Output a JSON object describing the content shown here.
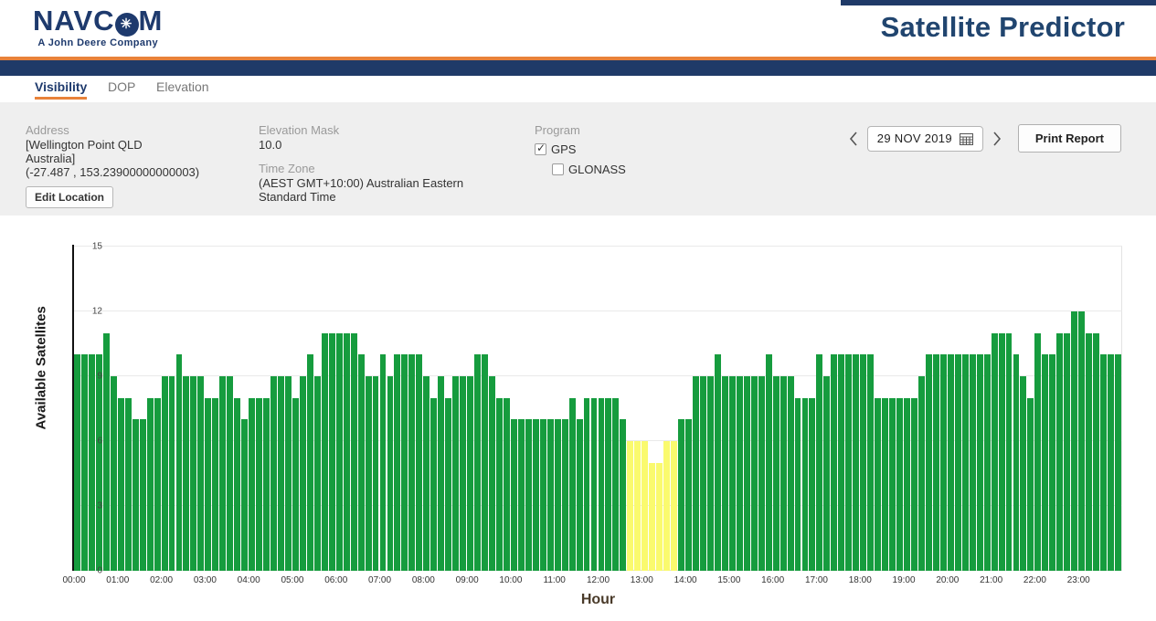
{
  "header": {
    "logo_text_left": "NAVC",
    "logo_text_right": "M",
    "logo_star": "✳",
    "logo_sub": "A John Deere Company",
    "title": "Satellite Predictor",
    "navy": "#1f3a68",
    "orange": "#e8823a"
  },
  "tabs": [
    {
      "label": "Visibility",
      "active": true
    },
    {
      "label": "DOP",
      "active": false
    },
    {
      "label": "Elevation",
      "active": false
    }
  ],
  "info": {
    "address_label": "Address",
    "address_line1": "[Wellington Point QLD",
    "address_line2": "Australia]",
    "address_line3": "(-27.487 , 153.23900000000003)",
    "edit_button": "Edit Location",
    "elevation_mask_label": "Elevation Mask",
    "elevation_mask_value": "10.0",
    "time_zone_label": "Time Zone",
    "time_zone_value": "(AEST GMT+10:00) Australian Eastern Standard Time",
    "program_label": "Program",
    "programs": [
      {
        "label": "GPS",
        "checked": true
      },
      {
        "label": "GLONASS",
        "checked": false
      }
    ],
    "check_glyph": "✓",
    "date_value": "29 NOV 2019",
    "print_button": "Print Report"
  },
  "chart_data": {
    "type": "bar",
    "title": "",
    "xlabel": "Hour",
    "ylabel": "Available Satellites",
    "ylim": [
      0,
      15
    ],
    "yticks": [
      0,
      3,
      6,
      9,
      12,
      15
    ],
    "grid": true,
    "interval_minutes": 10,
    "x_tick_labels": [
      "00:00",
      "01:00",
      "02:00",
      "03:00",
      "04:00",
      "05:00",
      "06:00",
      "07:00",
      "08:00",
      "09:00",
      "10:00",
      "11:00",
      "12:00",
      "13:00",
      "14:00",
      "15:00",
      "16:00",
      "17:00",
      "18:00",
      "19:00",
      "20:00",
      "21:00",
      "22:00",
      "23:00"
    ],
    "bar_color_normal": "#169c3e",
    "bar_color_low": "#fafa6e",
    "low_threshold": 7,
    "values": [
      10,
      10,
      10,
      10,
      11,
      9,
      8,
      8,
      7,
      7,
      8,
      8,
      9,
      9,
      10,
      9,
      9,
      9,
      8,
      8,
      9,
      9,
      8,
      7,
      8,
      8,
      8,
      9,
      9,
      9,
      8,
      9,
      10,
      9,
      11,
      11,
      11,
      11,
      11,
      10,
      9,
      9,
      10,
      9,
      10,
      10,
      10,
      10,
      9,
      8,
      9,
      8,
      9,
      9,
      9,
      10,
      10,
      9,
      8,
      8,
      7,
      7,
      7,
      7,
      7,
      7,
      7,
      7,
      8,
      7,
      8,
      8,
      8,
      8,
      8,
      7,
      6,
      6,
      6,
      5,
      5,
      6,
      6,
      7,
      7,
      9,
      9,
      9,
      10,
      9,
      9,
      9,
      9,
      9,
      9,
      10,
      9,
      9,
      9,
      8,
      8,
      8,
      10,
      9,
      10,
      10,
      10,
      10,
      10,
      10,
      8,
      8,
      8,
      8,
      8,
      8,
      9,
      10,
      10,
      10,
      10,
      10,
      10,
      10,
      10,
      10,
      11,
      11,
      11,
      10,
      9,
      8,
      11,
      10,
      10,
      11,
      11,
      12,
      12,
      11,
      11,
      10,
      10,
      10
    ]
  }
}
